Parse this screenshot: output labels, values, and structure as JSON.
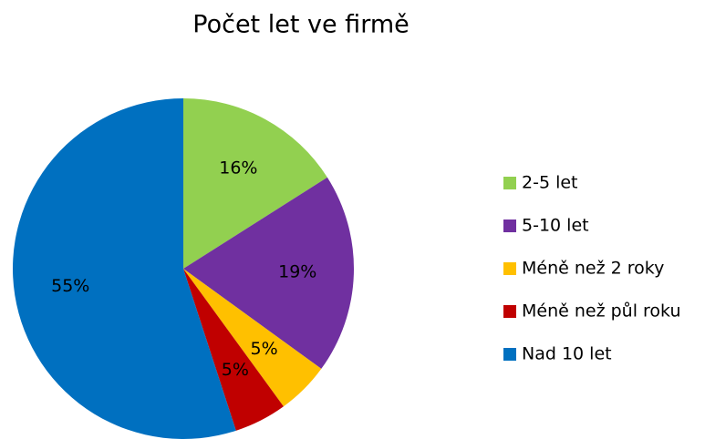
{
  "chart_data": {
    "type": "pie",
    "title": "Počet let ve firmě",
    "categories": [
      "2-5 let",
      "5-10 let",
      "Méně než 2 roky",
      "Méně než půl roku",
      "Nad 10 let"
    ],
    "values": [
      16,
      19,
      5,
      5,
      55
    ],
    "value_labels": [
      "16%",
      "19%",
      "5%",
      "5%",
      "55%"
    ],
    "colors": [
      "#92d050",
      "#7030a0",
      "#ffc000",
      "#c00000",
      "#0070c0"
    ],
    "legend": "right"
  }
}
